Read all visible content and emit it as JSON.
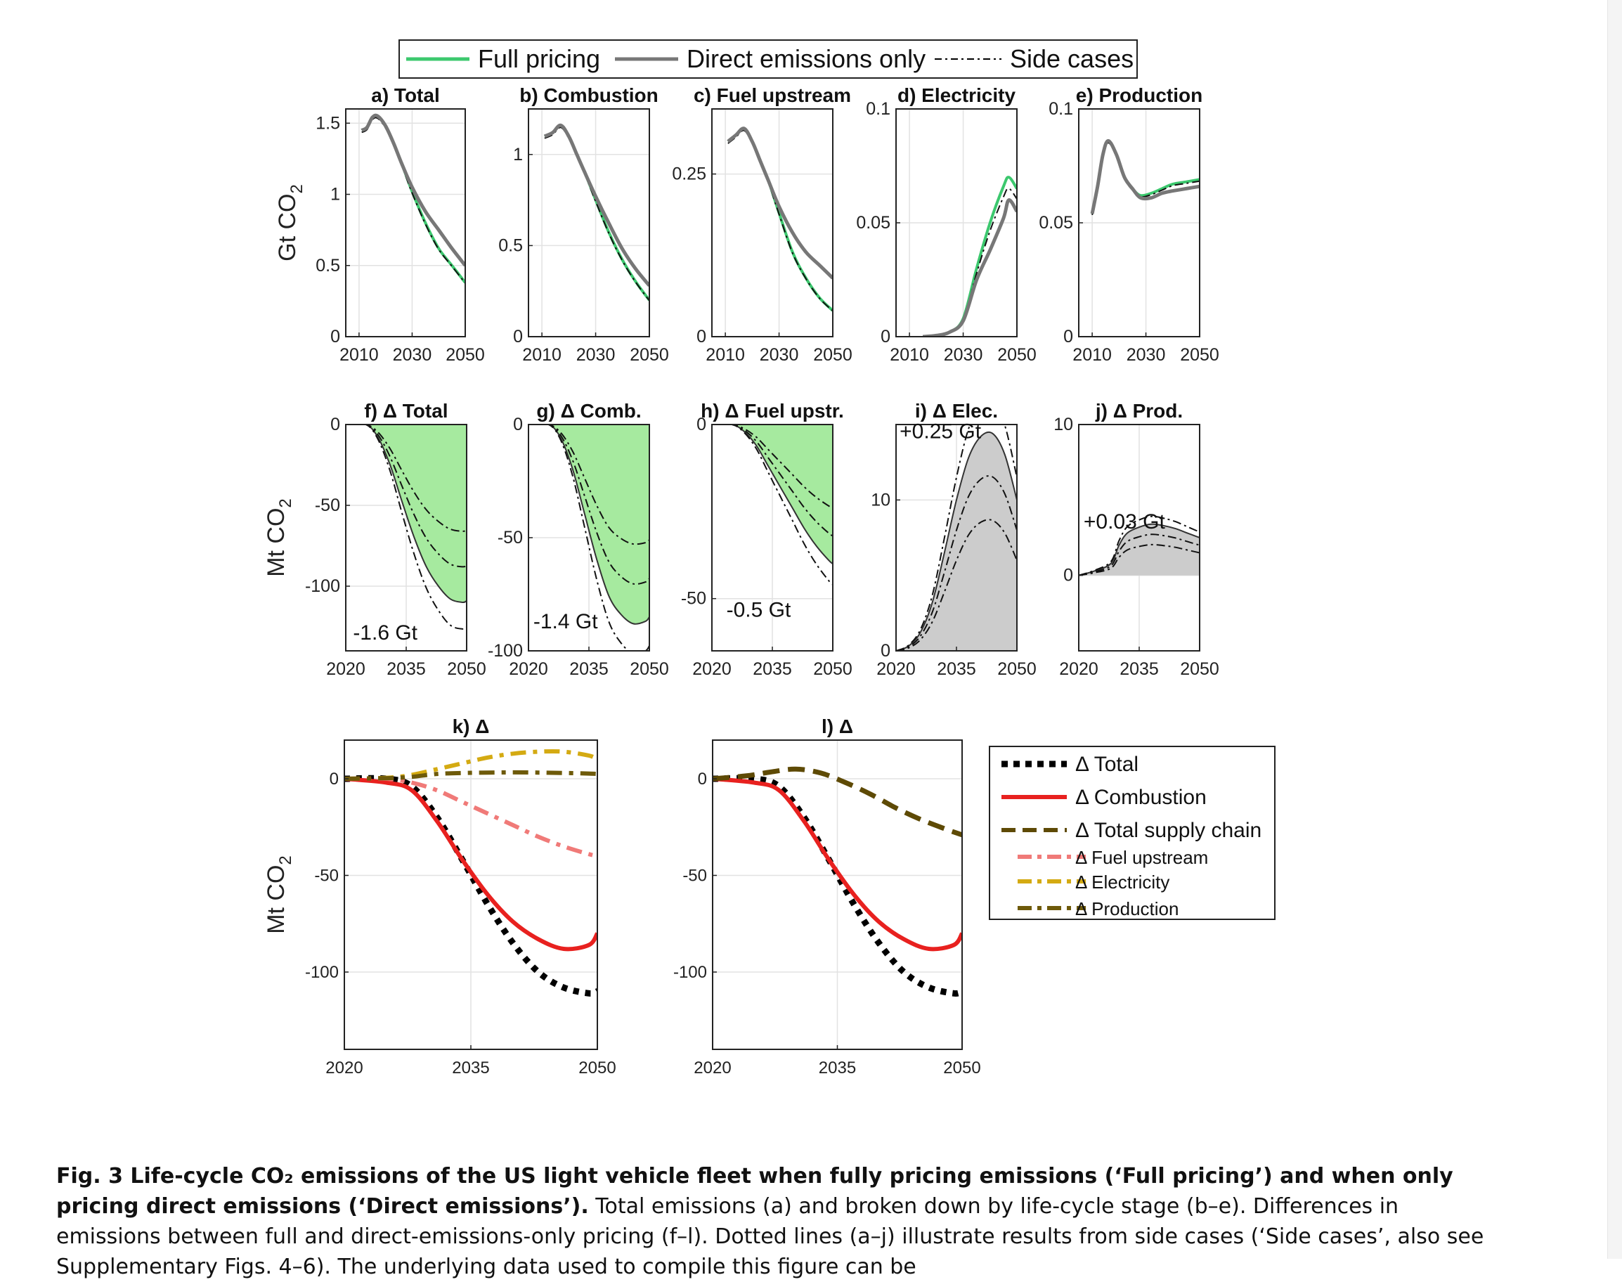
{
  "legend_top": {
    "items": [
      {
        "label": "Full pricing",
        "color": "#3cc86e",
        "style": "solid"
      },
      {
        "label": "Direct emissions only",
        "color": "#777777",
        "style": "solid"
      },
      {
        "label": "Side cases",
        "color": "#000000",
        "style": "dashdot"
      }
    ]
  },
  "legend_bottom": {
    "items": [
      {
        "label": "Δ Total",
        "color": "#000000",
        "style": "dotted"
      },
      {
        "label": "Δ Combustion",
        "color": "#e8211f",
        "style": "solid"
      },
      {
        "label": "Δ Total supply chain",
        "color": "#5e4a05",
        "style": "dashed"
      },
      {
        "label": "Δ  Fuel upstream",
        "color": "#f07a78",
        "style": "dashdot"
      },
      {
        "label": "Δ  Electricity",
        "color": "#d4aa12",
        "style": "dashdot"
      },
      {
        "label": "Δ  Production",
        "color": "#6e5a0a",
        "style": "dashdot"
      }
    ]
  },
  "ylabels": {
    "row1": "Gt CO2",
    "row2": "Mt CO2",
    "row3": "Mt CO2"
  },
  "chart_data": [
    {
      "id": "a",
      "type": "line",
      "title": "a) Total",
      "ylim": [
        0,
        1.6
      ],
      "xlim": [
        2005,
        2050
      ],
      "yticks": [
        "0",
        "0.5",
        "1",
        "1.5"
      ],
      "ytick_values": [
        0,
        0.5,
        1,
        1.5
      ],
      "xticks": [
        "2010",
        "2030",
        "2050"
      ],
      "xtick_values": [
        2010,
        2030,
        2050
      ],
      "series": [
        {
          "name": "Full pricing",
          "x": [
            2011,
            2013,
            2015,
            2017,
            2020,
            2023,
            2026,
            2030,
            2035,
            2040,
            2045,
            2050
          ],
          "y": [
            1.45,
            1.47,
            1.54,
            1.55,
            1.48,
            1.36,
            1.22,
            1.02,
            0.8,
            0.62,
            0.5,
            0.38
          ]
        },
        {
          "name": "Direct emissions only",
          "x": [
            2011,
            2013,
            2015,
            2017,
            2020,
            2023,
            2026,
            2030,
            2035,
            2040,
            2045,
            2050
          ],
          "y": [
            1.45,
            1.47,
            1.54,
            1.55,
            1.48,
            1.36,
            1.22,
            1.05,
            0.88,
            0.75,
            0.62,
            0.5
          ]
        }
      ]
    },
    {
      "id": "b",
      "type": "line",
      "title": "b) Combustion",
      "ylim": [
        0,
        1.25
      ],
      "xlim": [
        2005,
        2050
      ],
      "yticks": [
        "0",
        "0.5",
        "1"
      ],
      "ytick_values": [
        0,
        0.5,
        1
      ],
      "xticks": [
        "2010",
        "2030",
        "2050"
      ],
      "xtick_values": [
        2010,
        2030,
        2050
      ],
      "series": [
        {
          "name": "Full pricing",
          "x": [
            2011,
            2014,
            2017,
            2020,
            2023,
            2026,
            2030,
            2035,
            2040,
            2045,
            2050
          ],
          "y": [
            1.1,
            1.12,
            1.16,
            1.1,
            1.0,
            0.9,
            0.75,
            0.57,
            0.42,
            0.3,
            0.2
          ]
        },
        {
          "name": "Direct emissions only",
          "x": [
            2011,
            2014,
            2017,
            2020,
            2023,
            2026,
            2030,
            2035,
            2040,
            2045,
            2050
          ],
          "y": [
            1.1,
            1.12,
            1.16,
            1.1,
            1.0,
            0.9,
            0.77,
            0.62,
            0.48,
            0.37,
            0.28
          ]
        }
      ]
    },
    {
      "id": "c",
      "type": "line",
      "title": "c) Fuel upstream",
      "ylim": [
        0,
        0.35
      ],
      "xlim": [
        2005,
        2050
      ],
      "yticks": [
        "0",
        "0.25"
      ],
      "ytick_values": [
        0,
        0.25
      ],
      "xticks": [
        "2010",
        "2030",
        "2050"
      ],
      "xtick_values": [
        2010,
        2030,
        2050
      ],
      "series": [
        {
          "name": "Full pricing",
          "x": [
            2011,
            2014,
            2017,
            2020,
            2023,
            2026,
            2030,
            2035,
            2040,
            2045,
            2050
          ],
          "y": [
            0.3,
            0.31,
            0.32,
            0.3,
            0.27,
            0.24,
            0.19,
            0.13,
            0.09,
            0.06,
            0.04
          ]
        },
        {
          "name": "Direct emissions only",
          "x": [
            2011,
            2014,
            2017,
            2020,
            2023,
            2026,
            2030,
            2035,
            2040,
            2045,
            2050
          ],
          "y": [
            0.3,
            0.31,
            0.32,
            0.3,
            0.27,
            0.24,
            0.2,
            0.16,
            0.13,
            0.11,
            0.09
          ]
        }
      ]
    },
    {
      "id": "d",
      "type": "line",
      "title": "d) Electricity",
      "ylim": [
        0,
        0.1
      ],
      "xlim": [
        2005,
        2050
      ],
      "yticks": [
        "0",
        "0.05",
        "0.1"
      ],
      "ytick_values": [
        0,
        0.05,
        0.1
      ],
      "xticks": [
        "2010",
        "2030",
        "2050"
      ],
      "xtick_values": [
        2010,
        2030,
        2050
      ],
      "series": [
        {
          "name": "Full pricing",
          "x": [
            2015,
            2020,
            2025,
            2030,
            2035,
            2040,
            2045,
            2047,
            2050
          ],
          "y": [
            0,
            0.0005,
            0.002,
            0.008,
            0.03,
            0.05,
            0.066,
            0.07,
            0.065
          ]
        },
        {
          "name": "Direct emissions only",
          "x": [
            2015,
            2020,
            2025,
            2030,
            2035,
            2040,
            2045,
            2047,
            2050
          ],
          "y": [
            0,
            0.0005,
            0.002,
            0.007,
            0.025,
            0.038,
            0.052,
            0.06,
            0.055
          ]
        }
      ]
    },
    {
      "id": "e",
      "type": "line",
      "title": "e) Production",
      "ylim": [
        0,
        0.1
      ],
      "xlim": [
        2005,
        2050
      ],
      "yticks": [
        "0",
        "0.05",
        "0.1"
      ],
      "ytick_values": [
        0,
        0.05,
        0.1
      ],
      "xticks": [
        "2010",
        "2030",
        "2050"
      ],
      "xtick_values": [
        2010,
        2030,
        2050
      ],
      "series": [
        {
          "name": "Full pricing",
          "x": [
            2010,
            2012,
            2014,
            2016,
            2019,
            2022,
            2025,
            2028,
            2032,
            2036,
            2040,
            2045,
            2050
          ],
          "y": [
            0.054,
            0.066,
            0.08,
            0.086,
            0.08,
            0.07,
            0.065,
            0.062,
            0.063,
            0.065,
            0.067,
            0.068,
            0.069
          ]
        },
        {
          "name": "Direct emissions only",
          "x": [
            2010,
            2012,
            2014,
            2016,
            2019,
            2022,
            2025,
            2028,
            2032,
            2036,
            2040,
            2045,
            2050
          ],
          "y": [
            0.054,
            0.066,
            0.08,
            0.086,
            0.08,
            0.07,
            0.065,
            0.061,
            0.061,
            0.063,
            0.064,
            0.065,
            0.066
          ]
        }
      ]
    },
    {
      "id": "f",
      "type": "area",
      "title": "f) Δ Total",
      "ylim": [
        -140,
        0
      ],
      "xlim": [
        2020,
        2050
      ],
      "yticks": [
        "0",
        "-50",
        "-100"
      ],
      "ytick_values": [
        0,
        -50,
        -100
      ],
      "xticks": [
        "2020",
        "2035",
        "2050"
      ],
      "xtick_values": [
        2020,
        2035,
        2050
      ],
      "annotation": "-1.6 Gt",
      "series": [
        {
          "name": "Δ Total",
          "x": [
            2020,
            2025,
            2028,
            2031,
            2034,
            2037,
            2040,
            2043,
            2046,
            2049,
            2050
          ],
          "y": [
            0,
            0,
            -8,
            -25,
            -48,
            -70,
            -88,
            -100,
            -108,
            -110,
            -109
          ]
        }
      ]
    },
    {
      "id": "g",
      "type": "area",
      "title": "g) Δ Comb.",
      "ylim": [
        -100,
        0
      ],
      "xlim": [
        2020,
        2050
      ],
      "yticks": [
        "0",
        "-50",
        "-100"
      ],
      "ytick_values": [
        0,
        -50,
        -100
      ],
      "xticks": [
        "2020",
        "2035",
        "2050"
      ],
      "xtick_values": [
        2020,
        2035,
        2050
      ],
      "annotation": "-1.4 Gt",
      "series": [
        {
          "name": "Δ Combustion",
          "x": [
            2020,
            2025,
            2028,
            2031,
            2034,
            2037,
            2040,
            2043,
            2046,
            2049,
            2050
          ],
          "y": [
            0,
            0,
            -6,
            -20,
            -40,
            -60,
            -76,
            -84,
            -88,
            -87,
            -85
          ]
        }
      ]
    },
    {
      "id": "h",
      "type": "area",
      "title": "h) Δ Fuel upstr.",
      "ylim": [
        -65,
        0
      ],
      "xlim": [
        2020,
        2050
      ],
      "yticks": [
        "0",
        "-50"
      ],
      "ytick_values": [
        0,
        -50
      ],
      "xticks": [
        "2020",
        "2035",
        "2050"
      ],
      "xtick_values": [
        2020,
        2035,
        2050
      ],
      "annotation": "-0.5 Gt",
      "series": [
        {
          "name": "Δ Fuel upstream",
          "x": [
            2020,
            2025,
            2028,
            2031,
            2034,
            2037,
            2040,
            2043,
            2046,
            2049,
            2050
          ],
          "y": [
            0,
            0,
            -2,
            -6,
            -12,
            -18,
            -24,
            -30,
            -35,
            -39,
            -40
          ]
        }
      ]
    },
    {
      "id": "i",
      "type": "area",
      "title": "i) Δ Elec.",
      "ylim": [
        0,
        15
      ],
      "xlim": [
        2020,
        2050
      ],
      "yticks": [
        "0",
        "10"
      ],
      "ytick_values": [
        0,
        10
      ],
      "xticks": [
        "2020",
        "2035",
        "2050"
      ],
      "xtick_values": [
        2020,
        2035,
        2050
      ],
      "annotation": "+0.25 Gt",
      "series": [
        {
          "name": "Δ Electricity",
          "x": [
            2020,
            2023,
            2026,
            2029,
            2032,
            2035,
            2038,
            2041,
            2044,
            2047,
            2050
          ],
          "y": [
            0,
            0.3,
            1.2,
            3.2,
            6.5,
            10,
            12.8,
            14.2,
            14.4,
            13,
            10
          ]
        }
      ]
    },
    {
      "id": "j",
      "type": "area",
      "title": "j) Δ Prod.",
      "ylim": [
        -5,
        10
      ],
      "xlim": [
        2020,
        2050
      ],
      "yticks": [
        "0",
        "10"
      ],
      "ytick_values": [
        0,
        10
      ],
      "xticks": [
        "2020",
        "2035",
        "2050"
      ],
      "xtick_values": [
        2020,
        2035,
        2050
      ],
      "annotation": "+0.03 Gt",
      "series": [
        {
          "name": "Δ Production",
          "x": [
            2020,
            2024,
            2028,
            2030,
            2032,
            2035,
            2038,
            2041,
            2044,
            2047,
            2050
          ],
          "y": [
            0,
            0.3,
            0.8,
            2,
            2.8,
            3.2,
            3.4,
            3.3,
            3.1,
            2.8,
            2.5
          ]
        }
      ]
    },
    {
      "id": "k",
      "type": "line",
      "title": "k) Δ",
      "ylim": [
        -140,
        20
      ],
      "xlim": [
        2020,
        2050
      ],
      "yticks": [
        "0",
        "-50",
        "-100"
      ],
      "ytick_values": [
        0,
        -50,
        -100
      ],
      "xticks": [
        "2020",
        "2035",
        "2050"
      ],
      "xtick_values": [
        2020,
        2035,
        2050
      ],
      "series": [
        {
          "name": "Δ Total",
          "x": [
            2020,
            2025,
            2028,
            2031,
            2034,
            2037,
            2040,
            2043,
            2046,
            2049,
            2050
          ],
          "y": [
            0,
            0,
            -4,
            -20,
            -42,
            -65,
            -85,
            -100,
            -108,
            -111,
            -110
          ]
        },
        {
          "name": "Δ Combustion",
          "x": [
            2020,
            2025,
            2028,
            2031,
            2034,
            2037,
            2040,
            2043,
            2046,
            2049,
            2050
          ],
          "y": [
            0,
            -2,
            -6,
            -22,
            -42,
            -60,
            -74,
            -83,
            -88,
            -86,
            -80
          ]
        },
        {
          "name": "Δ Fuel upstream",
          "x": [
            2020,
            2025,
            2028,
            2031,
            2034,
            2037,
            2040,
            2043,
            2046,
            2049,
            2050
          ],
          "y": [
            0,
            0,
            -2,
            -6,
            -12,
            -18,
            -24,
            -30,
            -35,
            -39,
            -40
          ]
        },
        {
          "name": "Δ Electricity",
          "x": [
            2020,
            2025,
            2028,
            2031,
            2034,
            2037,
            2040,
            2043,
            2046,
            2049,
            2050
          ],
          "y": [
            0,
            0.5,
            2,
            5,
            8,
            11,
            13,
            14,
            14,
            12,
            10
          ]
        },
        {
          "name": "Δ Production",
          "x": [
            2020,
            2025,
            2028,
            2031,
            2034,
            2037,
            2040,
            2043,
            2046,
            2049,
            2050
          ],
          "y": [
            0,
            0.3,
            1,
            2.5,
            3,
            3.2,
            3.3,
            3.2,
            3,
            2.7,
            2.5
          ]
        }
      ]
    },
    {
      "id": "l",
      "type": "line",
      "title": "l) Δ",
      "ylim": [
        -140,
        20
      ],
      "xlim": [
        2020,
        2050
      ],
      "yticks": [
        "0",
        "-50",
        "-100"
      ],
      "ytick_values": [
        0,
        -50,
        -100
      ],
      "xticks": [
        "2020",
        "2035",
        "2050"
      ],
      "xtick_values": [
        2020,
        2035,
        2050
      ],
      "series": [
        {
          "name": "Δ Total",
          "x": [
            2020,
            2025,
            2028,
            2031,
            2034,
            2037,
            2040,
            2043,
            2046,
            2049,
            2050
          ],
          "y": [
            0,
            0,
            -4,
            -20,
            -42,
            -65,
            -85,
            -100,
            -108,
            -111,
            -110
          ]
        },
        {
          "name": "Δ Combustion",
          "x": [
            2020,
            2025,
            2028,
            2031,
            2034,
            2037,
            2040,
            2043,
            2046,
            2049,
            2050
          ],
          "y": [
            0,
            -2,
            -6,
            -22,
            -42,
            -60,
            -74,
            -83,
            -88,
            -86,
            -80
          ]
        },
        {
          "name": "Δ Total supply chain",
          "x": [
            2020,
            2024,
            2027,
            2030,
            2033,
            2036,
            2039,
            2042,
            2045,
            2048,
            2050
          ],
          "y": [
            0,
            1.5,
            3.5,
            5,
            3,
            -2,
            -8,
            -15,
            -21,
            -26,
            -29
          ]
        }
      ]
    }
  ],
  "caption": {
    "lead": "Fig. 3 Life-cycle CO₂ emissions of the US light vehicle fleet when fully pricing emissions (‘Full pricing’) and when only pricing direct emissions (‘Direct emissions’).",
    "body": " Total emissions (a) and broken down by life-cycle stage (b–e). Differences in emissions between full and direct-emissions-only pricing (f–l). Dotted lines (a–j) illustrate results from side cases (‘Side cases’, also see Supplementary Figs. 4–6). The underlying data used to compile this figure can be"
  },
  "colors": {
    "full_pricing": "#3cc86e",
    "direct": "#777777",
    "area_green": "#a6ea9f",
    "area_grey": "#cccccc"
  }
}
